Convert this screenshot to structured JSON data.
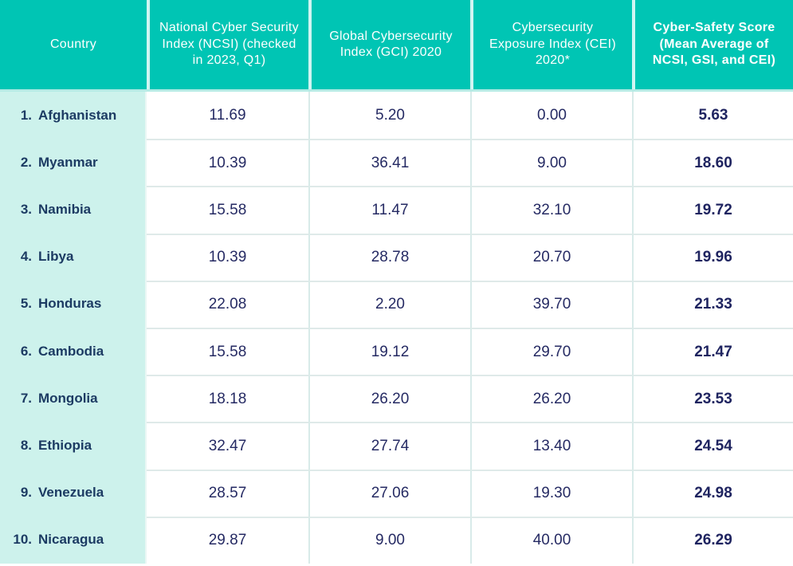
{
  "title": "Cyber-safety country ranking table",
  "colors": {
    "header_teal": "#00c5b4",
    "country_column_mint": "#cdf2ec",
    "country_text_navy": "#1c3b63",
    "number_text_navy": "#252a63",
    "header_text": "#ffffff",
    "row_divider": "#dfeae9",
    "column_divider": "#d8ebe9"
  },
  "table": {
    "columns": [
      {
        "label": "Country"
      },
      {
        "label": "National Cyber Security Index (NCSI) (checked in 2023, Q1)"
      },
      {
        "label": "Global Cybersecurity Index (GCI) 2020"
      },
      {
        "label": "Cybersecurity Exposure Index (CEI) 2020*"
      },
      {
        "label": "Cyber-Safety Score (Mean Average of NCSI, GSI, and CEI)"
      }
    ],
    "rows": [
      {
        "rank": "1.",
        "country": "Afghanistan",
        "ncsi": "11.69",
        "gci": "5.20",
        "cei": "0.00",
        "score": "5.63"
      },
      {
        "rank": "2.",
        "country": "Myanmar",
        "ncsi": "10.39",
        "gci": "36.41",
        "cei": "9.00",
        "score": "18.60"
      },
      {
        "rank": "3.",
        "country": "Namibia",
        "ncsi": "15.58",
        "gci": "11.47",
        "cei": "32.10",
        "score": "19.72"
      },
      {
        "rank": "4.",
        "country": "Libya",
        "ncsi": "10.39",
        "gci": "28.78",
        "cei": "20.70",
        "score": "19.96"
      },
      {
        "rank": "5.",
        "country": "Honduras",
        "ncsi": "22.08",
        "gci": "2.20",
        "cei": "39.70",
        "score": "21.33"
      },
      {
        "rank": "6.",
        "country": "Cambodia",
        "ncsi": "15.58",
        "gci": "19.12",
        "cei": "29.70",
        "score": "21.47"
      },
      {
        "rank": "7.",
        "country": "Mongolia",
        "ncsi": "18.18",
        "gci": "26.20",
        "cei": "26.20",
        "score": "23.53"
      },
      {
        "rank": "8.",
        "country": "Ethiopia",
        "ncsi": "32.47",
        "gci": "27.74",
        "cei": "13.40",
        "score": "24.54"
      },
      {
        "rank": "9.",
        "country": "Venezuela",
        "ncsi": "28.57",
        "gci": "27.06",
        "cei": "19.30",
        "score": "24.98"
      },
      {
        "rank": "10.",
        "country": "Nicaragua",
        "ncsi": "29.87",
        "gci": "9.00",
        "cei": "40.00",
        "score": "26.29"
      }
    ]
  },
  "chart_data": {
    "type": "table",
    "title": "Cyber-Safety Score ranking (bottom 10 countries)",
    "columns": [
      "Country",
      "National Cyber Security Index (NCSI) (checked in 2023, Q1)",
      "Global Cybersecurity Index (GCI) 2020",
      "Cybersecurity Exposure Index (CEI) 2020*",
      "Cyber-Safety Score (Mean Average of NCSI, GSI, and CEI)"
    ],
    "rows": [
      [
        "1. Afghanistan",
        11.69,
        5.2,
        0.0,
        5.63
      ],
      [
        "2. Myanmar",
        10.39,
        36.41,
        9.0,
        18.6
      ],
      [
        "3. Namibia",
        15.58,
        11.47,
        32.1,
        19.72
      ],
      [
        "4. Libya",
        10.39,
        28.78,
        20.7,
        19.96
      ],
      [
        "5. Honduras",
        22.08,
        2.2,
        39.7,
        21.33
      ],
      [
        "6. Cambodia",
        15.58,
        19.12,
        29.7,
        21.47
      ],
      [
        "7. Mongolia",
        18.18,
        26.2,
        26.2,
        23.53
      ],
      [
        "8. Ethiopia",
        32.47,
        27.74,
        13.4,
        24.54
      ],
      [
        "9. Venezuela",
        28.57,
        27.06,
        19.3,
        24.98
      ],
      [
        "10. Nicaragua",
        29.87,
        9.0,
        40.0,
        26.29
      ]
    ]
  }
}
